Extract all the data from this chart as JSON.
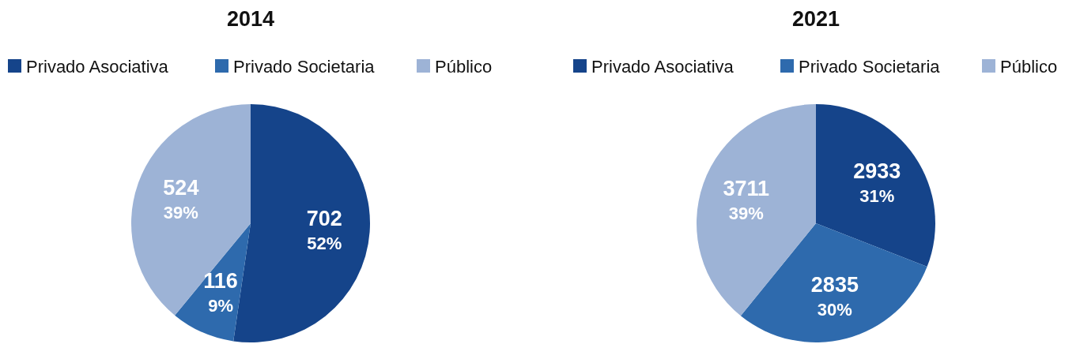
{
  "chart_data": [
    {
      "type": "pie",
      "title": "2014",
      "categories": [
        "Privado Asociativa",
        "Privado Societaria",
        "Público"
      ],
      "values": [
        702,
        116,
        524
      ],
      "colors": [
        "#15448a",
        "#2e6aad",
        "#9db3d6"
      ],
      "value_labels": [
        "702\n52%",
        "116\n9%",
        "524\n39%"
      ],
      "legend": "top"
    },
    {
      "type": "pie",
      "title": "2021",
      "categories": [
        "Privado Asociativa",
        "Privado Societaria",
        "Público"
      ],
      "values": [
        2933,
        2835,
        3711
      ],
      "colors": [
        "#15448a",
        "#2e6aad",
        "#9db3d6"
      ],
      "value_labels": [
        "2933\n31%",
        "2835\n30%",
        "3711\n39%"
      ],
      "legend": "top"
    }
  ]
}
